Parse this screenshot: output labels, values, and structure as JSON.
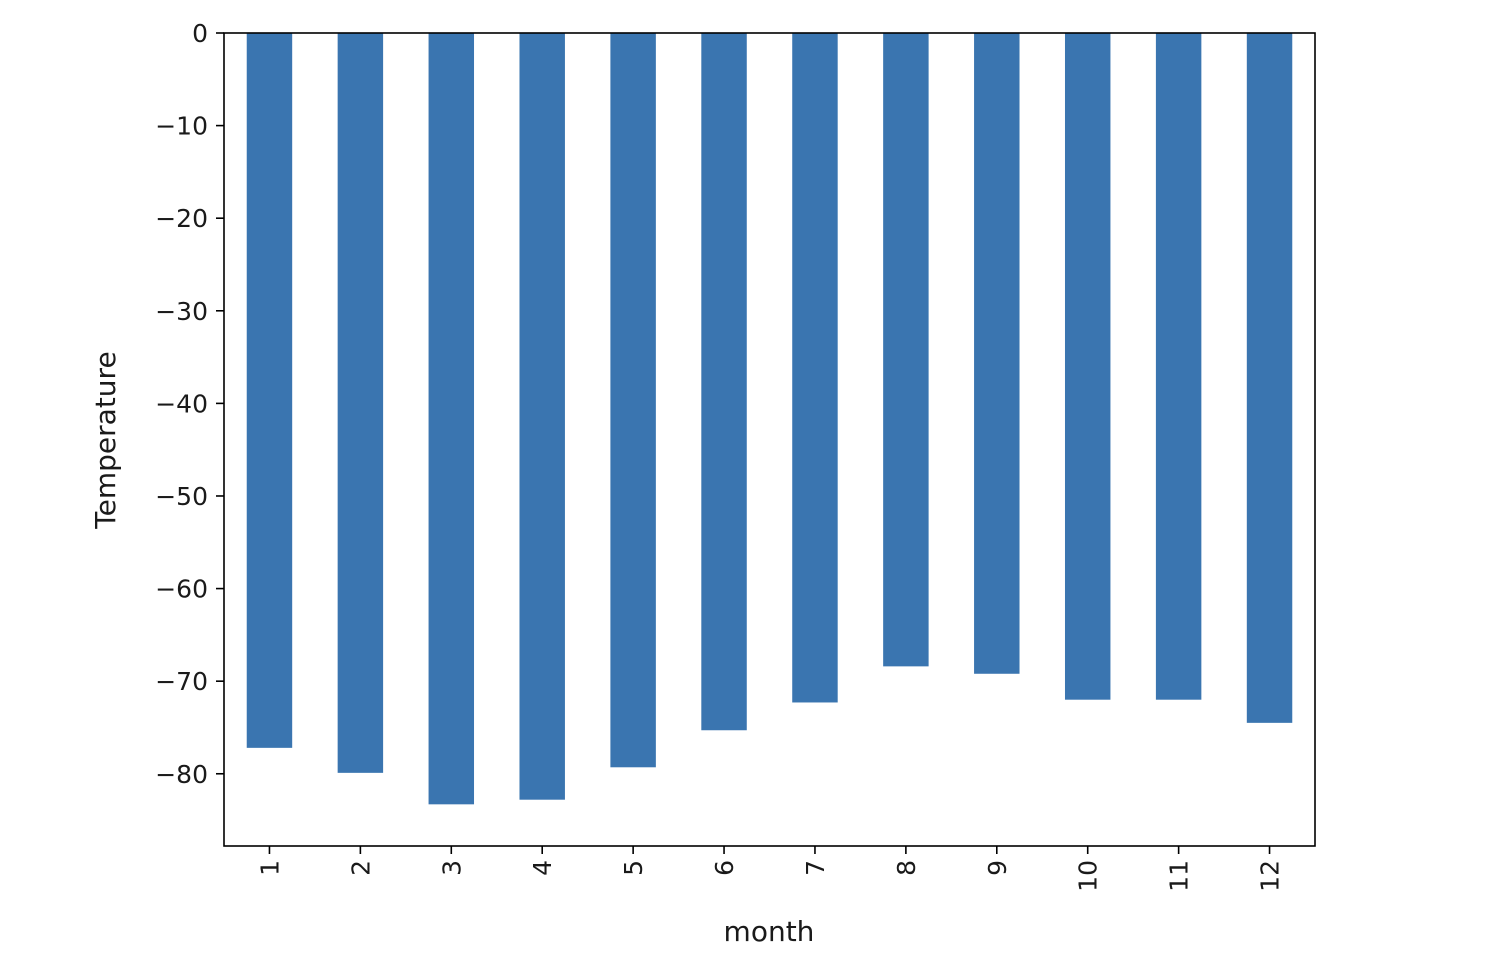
{
  "chart_data": {
    "type": "bar",
    "categories": [
      "1",
      "2",
      "3",
      "4",
      "5",
      "6",
      "7",
      "8",
      "9",
      "10",
      "11",
      "12"
    ],
    "values": [
      -77.2,
      -79.9,
      -83.3,
      -82.8,
      -79.3,
      -75.3,
      -72.3,
      -68.4,
      -69.2,
      -72.0,
      -72.0,
      -74.5
    ],
    "title": "",
    "xlabel": "month",
    "ylabel": "Temperature",
    "ylim": [
      -87.8,
      0
    ],
    "yticks": [
      0,
      -10,
      -20,
      -30,
      -40,
      -50,
      -60,
      -70,
      -80
    ],
    "ytick_labels": [
      "0",
      "−10",
      "−20",
      "−30",
      "−40",
      "−50",
      "−60",
      "−70",
      "−80"
    ],
    "bar_color": "#3a75b0",
    "grid": false,
    "legend": "none",
    "xtick_rotation": "vertical"
  }
}
